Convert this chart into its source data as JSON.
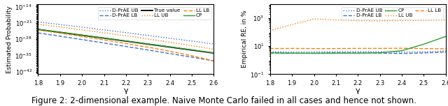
{
  "gamma": [
    1.8,
    1.9,
    2.0,
    2.1,
    2.2,
    2.3,
    2.4,
    2.5,
    2.6
  ],
  "left": {
    "dprae_ub": [
      2.5e-21,
      2e-22,
      1.5e-23,
      1e-24,
      6.5e-26,
      4.2e-27,
      2.6e-28,
      1.6e-29,
      9.5e-31
    ],
    "dprae_lb": [
      5e-26,
      2e-27,
      7e-29,
      2.5e-30,
      8e-32,
      2.5e-33,
      7e-35,
      2e-36,
      5e-38
    ],
    "true_value": [
      1.6e-24,
      9e-26,
      5e-27,
      2.8e-28,
      1.5e-29,
      8e-31,
      4.2e-32,
      2.2e-33,
      1.1e-34
    ],
    "ll_ub": [
      2.5e-22,
      1.8e-23,
      1.1e-24,
      6e-26,
      3e-27,
      1.3e-28,
      5e-30,
      1.7e-31,
      5e-33
    ],
    "ll_lb": [
      9e-25,
      4e-26,
      1.5e-27,
      5e-29,
      1.5e-30,
      4e-32,
      7e-34,
      8e-36,
      5e-38
    ],
    "cp": [
      1.8e-24,
      1e-25,
      5.8e-27,
      3.3e-28,
      1.8e-29,
      9.8e-31,
      5.3e-32,
      2.8e-33,
      1.4e-34
    ],
    "ylabel": "Estimated Probability",
    "xlabel": "γ",
    "yticks_exp": [
      -42,
      -35,
      -28,
      -21,
      -14
    ]
  },
  "right": {
    "dprae_ub": [
      4.0,
      3.8,
      3.9,
      4.1,
      4.2,
      4.0,
      3.8,
      4.0,
      4.5
    ],
    "dprae_lb": [
      3.3,
      3.1,
      3.2,
      3.4,
      3.4,
      3.2,
      3.0,
      3.3,
      3.8
    ],
    "ll_ub": [
      130,
      350,
      900,
      750,
      680,
      660,
      700,
      720,
      730
    ],
    "ll_lb": [
      6.8,
      7.0,
      6.8,
      6.8,
      7.0,
      7.0,
      7.2,
      6.8,
      6.5
    ],
    "cp": [
      3.4,
      3.2,
      3.1,
      3.2,
      3.2,
      3.4,
      4.8,
      14.0,
      50.0
    ],
    "ylabel": "Empirical RE, in %",
    "xlabel": "γ",
    "yticks_exp": [
      -1,
      1,
      3
    ]
  },
  "colors": {
    "dprae": "#4472c4",
    "ll": "#ff7f0e",
    "true": "#000000",
    "cp": "#2ca02c"
  },
  "caption": "Figure 2: 2-dimensional example. Naive Monte Carlo failed in all cases and hence not shown.",
  "caption_fontsize": 8.5
}
